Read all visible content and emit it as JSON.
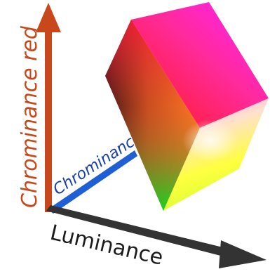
{
  "axes": {
    "red_label": "Chrominance red",
    "blue_label": "Chrominance",
    "luminance_label": "Luminance"
  },
  "colors": {
    "red_axis": "#c8471b",
    "blue_axis": "#1f5fd6",
    "blue_text": "#1a3fa8",
    "luminance_axis": "#333333",
    "luminance_text": "#1c1c1c",
    "background": "#ffffff"
  },
  "cube": {
    "faces": [
      "front",
      "top",
      "right"
    ],
    "corner_colors": [
      "black",
      "red",
      "magenta",
      "white",
      "yellow",
      "green"
    ]
  }
}
